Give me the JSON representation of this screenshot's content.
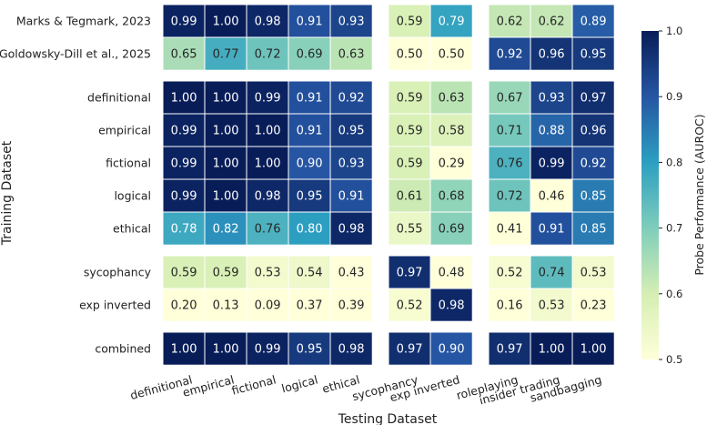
{
  "chart_data": {
    "type": "heatmap",
    "ylabel": "Training Dataset",
    "xlabel": "Testing Dataset",
    "colorbar": {
      "label": "Probe Performance (AUROC)",
      "range": [
        0.5,
        1.0
      ],
      "ticks": [
        "0.5",
        "0.6",
        "0.7",
        "0.8",
        "0.9",
        "1.0"
      ],
      "colormap": "YlGnBu"
    },
    "columns": [
      "definitional",
      "empirical",
      "fictional",
      "logical",
      "ethical",
      "sycophancy",
      "exp inverted",
      "roleplaying",
      "insider trading",
      "sandbagging"
    ],
    "column_groups": [
      5,
      2,
      3
    ],
    "rows": [
      "Marks & Tegmark, 2023",
      "Goldowsky-Dill et al., 2025",
      "definitional",
      "empirical",
      "fictional",
      "logical",
      "ethical",
      "sycophancy",
      "exp inverted",
      "combined"
    ],
    "row_groups": [
      2,
      5,
      2,
      1
    ],
    "values": [
      [
        0.99,
        1.0,
        0.98,
        0.91,
        0.93,
        0.59,
        0.79,
        0.62,
        0.62,
        0.89
      ],
      [
        0.65,
        0.77,
        0.72,
        0.69,
        0.63,
        0.5,
        0.5,
        0.92,
        0.96,
        0.95
      ],
      [
        1.0,
        1.0,
        0.99,
        0.91,
        0.92,
        0.59,
        0.63,
        0.67,
        0.93,
        0.97
      ],
      [
        0.99,
        1.0,
        1.0,
        0.91,
        0.95,
        0.59,
        0.58,
        0.71,
        0.88,
        0.96
      ],
      [
        0.99,
        1.0,
        1.0,
        0.9,
        0.93,
        0.59,
        0.29,
        0.76,
        0.99,
        0.92
      ],
      [
        0.99,
        1.0,
        0.98,
        0.95,
        0.91,
        0.61,
        0.68,
        0.72,
        0.46,
        0.85
      ],
      [
        0.78,
        0.82,
        0.76,
        0.8,
        0.98,
        0.55,
        0.69,
        0.41,
        0.91,
        0.85
      ],
      [
        0.59,
        0.59,
        0.53,
        0.54,
        0.43,
        0.97,
        0.48,
        0.52,
        0.74,
        0.53
      ],
      [
        0.2,
        0.13,
        0.09,
        0.37,
        0.39,
        0.52,
        0.98,
        0.16,
        0.53,
        0.23
      ],
      [
        1.0,
        1.0,
        0.99,
        0.95,
        0.98,
        0.97,
        0.9,
        0.97,
        1.0,
        1.0
      ]
    ],
    "labels": [
      [
        "0.99",
        "1.00",
        "0.98",
        "0.91",
        "0.93",
        "0.59",
        "0.79",
        "0.62",
        "0.62",
        "0.89"
      ],
      [
        "0.65",
        "0.77",
        "0.72",
        "0.69",
        "0.63",
        "0.50",
        "0.50",
        "0.92",
        "0.96",
        "0.95"
      ],
      [
        "1.00",
        "1.00",
        "0.99",
        "0.91",
        "0.92",
        "0.59",
        "0.63",
        "0.67",
        "0.93",
        "0.97"
      ],
      [
        "0.99",
        "1.00",
        "1.00",
        "0.91",
        "0.95",
        "0.59",
        "0.58",
        "0.71",
        "0.88",
        "0.96"
      ],
      [
        "0.99",
        "1.00",
        "1.00",
        "0.90",
        "0.93",
        "0.59",
        "0.29",
        "0.76",
        "0.99",
        "0.92"
      ],
      [
        "0.99",
        "1.00",
        "0.98",
        "0.95",
        "0.91",
        "0.61",
        "0.68",
        "0.72",
        "0.46",
        "0.85"
      ],
      [
        "0.78",
        "0.82",
        "0.76",
        "0.80",
        "0.98",
        "0.55",
        "0.69",
        "0.41",
        "0.91",
        "0.85"
      ],
      [
        "0.59",
        "0.59",
        "0.53",
        "0.54",
        "0.43",
        "0.97",
        "0.48",
        "0.52",
        "0.74",
        "0.53"
      ],
      [
        "0.20",
        "0.13",
        "0.09",
        "0.37",
        "0.39",
        "0.52",
        "0.98",
        "0.16",
        "0.53",
        "0.23"
      ],
      [
        "1.00",
        "1.00",
        "0.99",
        "0.95",
        "0.98",
        "0.97",
        "0.90",
        "0.97",
        "1.00",
        "1.00"
      ]
    ]
  }
}
